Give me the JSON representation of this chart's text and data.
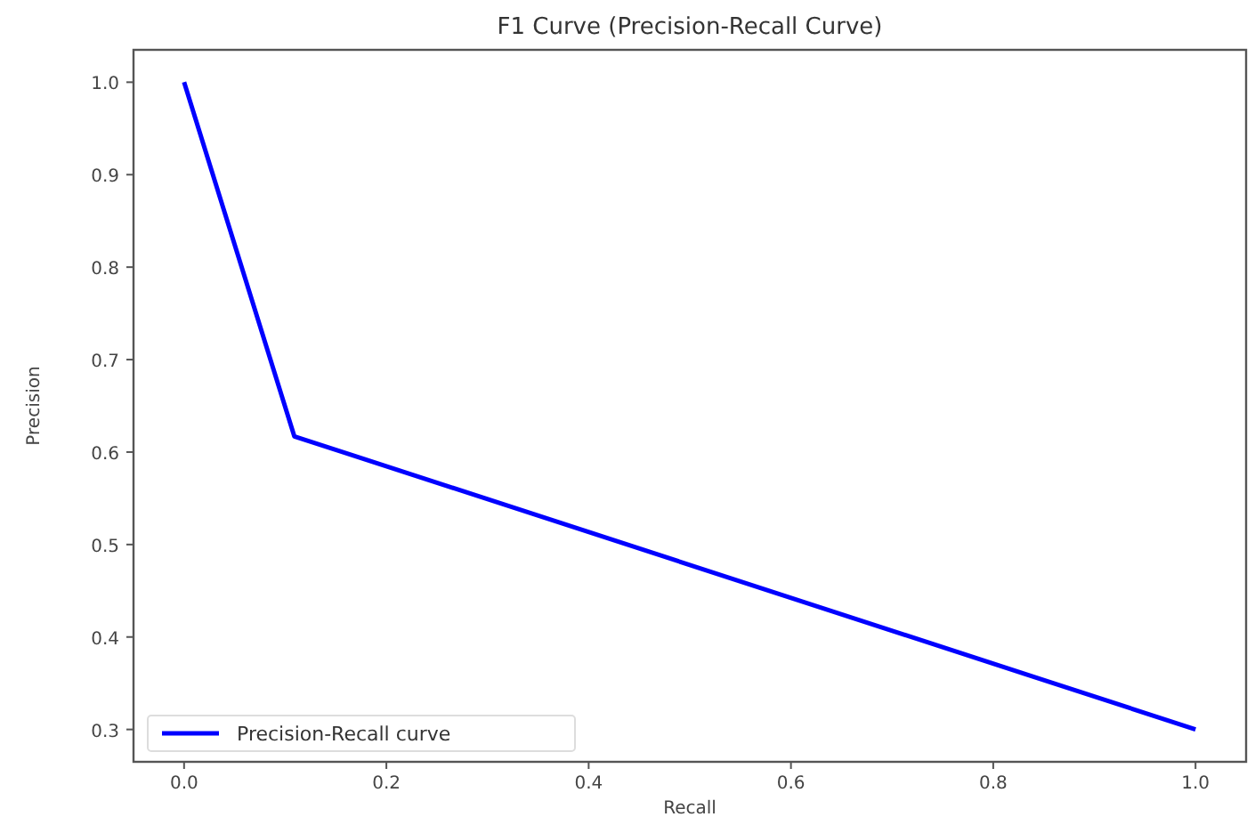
{
  "chart_data": {
    "type": "line",
    "title": "F1 Curve (Precision-Recall Curve)",
    "xlabel": "Recall",
    "ylabel": "Precision",
    "x": [
      0,
      0.109,
      1.0
    ],
    "series": [
      {
        "name": "Precision-Recall curve",
        "color": "#0000ff",
        "values": [
          1.0,
          0.617,
          0.3
        ]
      }
    ],
    "xlim": [
      -0.05,
      1.05
    ],
    "xticks": [
      {
        "value": 0,
        "label": "0.0"
      },
      0.2,
      0.4,
      0.6,
      0.8,
      {
        "value": 1,
        "label": "1.0"
      }
    ],
    "ylim": [
      0.265,
      1.035
    ],
    "yticks": [
      {
        "value": 0.3,
        "label": "0.3"
      },
      0.4,
      0.5,
      0.6,
      0.7,
      0.8,
      0.9,
      {
        "value": 1,
        "label": "1.0"
      }
    ],
    "legend": "bottom left",
    "grid": false
  }
}
